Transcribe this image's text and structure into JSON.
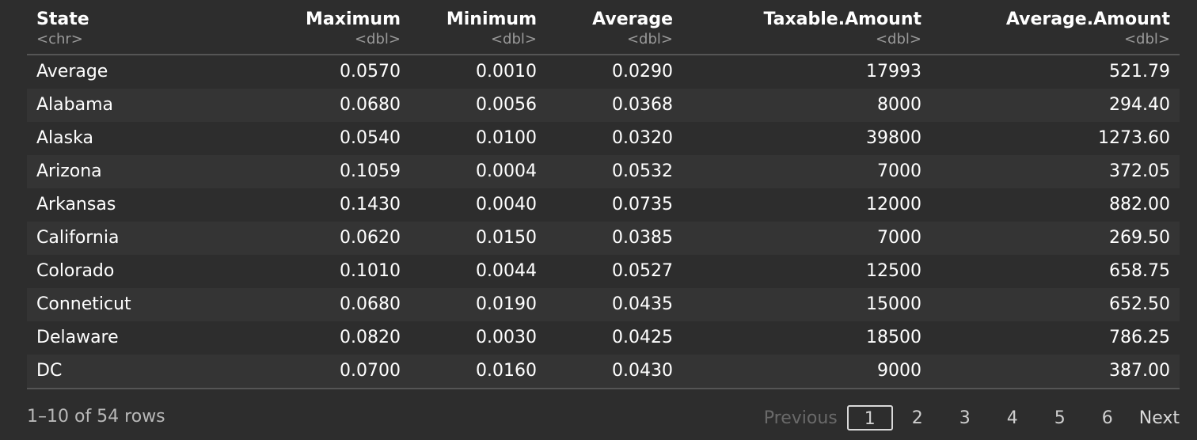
{
  "table": {
    "columns": [
      {
        "name": "State",
        "type": "<chr>",
        "align": "left"
      },
      {
        "name": "Maximum",
        "type": "<dbl>",
        "align": "right"
      },
      {
        "name": "Minimum",
        "type": "<dbl>",
        "align": "right"
      },
      {
        "name": "Average",
        "type": "<dbl>",
        "align": "right"
      },
      {
        "name": "Taxable.Amount",
        "type": "<dbl>",
        "align": "right"
      },
      {
        "name": "Average.Amount",
        "type": "<dbl>",
        "align": "right"
      }
    ],
    "rows": [
      [
        "Average",
        "0.0570",
        "0.0010",
        "0.0290",
        "17993",
        "521.79"
      ],
      [
        "Alabama",
        "0.0680",
        "0.0056",
        "0.0368",
        "8000",
        "294.40"
      ],
      [
        "Alaska",
        "0.0540",
        "0.0100",
        "0.0320",
        "39800",
        "1273.60"
      ],
      [
        "Arizona",
        "0.1059",
        "0.0004",
        "0.0532",
        "7000",
        "372.05"
      ],
      [
        "Arkansas",
        "0.1430",
        "0.0040",
        "0.0735",
        "12000",
        "882.00"
      ],
      [
        "California",
        "0.0620",
        "0.0150",
        "0.0385",
        "7000",
        "269.50"
      ],
      [
        "Colorado",
        "0.1010",
        "0.0044",
        "0.0527",
        "12500",
        "658.75"
      ],
      [
        "Conneticut",
        "0.0680",
        "0.0190",
        "0.0435",
        "15000",
        "652.50"
      ],
      [
        "Delaware",
        "0.0820",
        "0.0030",
        "0.0425",
        "18500",
        "786.25"
      ],
      [
        "DC",
        "0.0700",
        "0.0160",
        "0.0430",
        "9000",
        "387.00"
      ]
    ]
  },
  "footer": {
    "row_info": "1–10 of 54 rows",
    "previous_label": "Previous",
    "next_label": "Next",
    "pages": [
      "1",
      "2",
      "3",
      "4",
      "5",
      "6"
    ],
    "current_page": "1"
  },
  "colors": {
    "background": "#2d2d2d",
    "text": "#ffffff",
    "muted": "#9a9a9a",
    "stripe": "#343434"
  }
}
